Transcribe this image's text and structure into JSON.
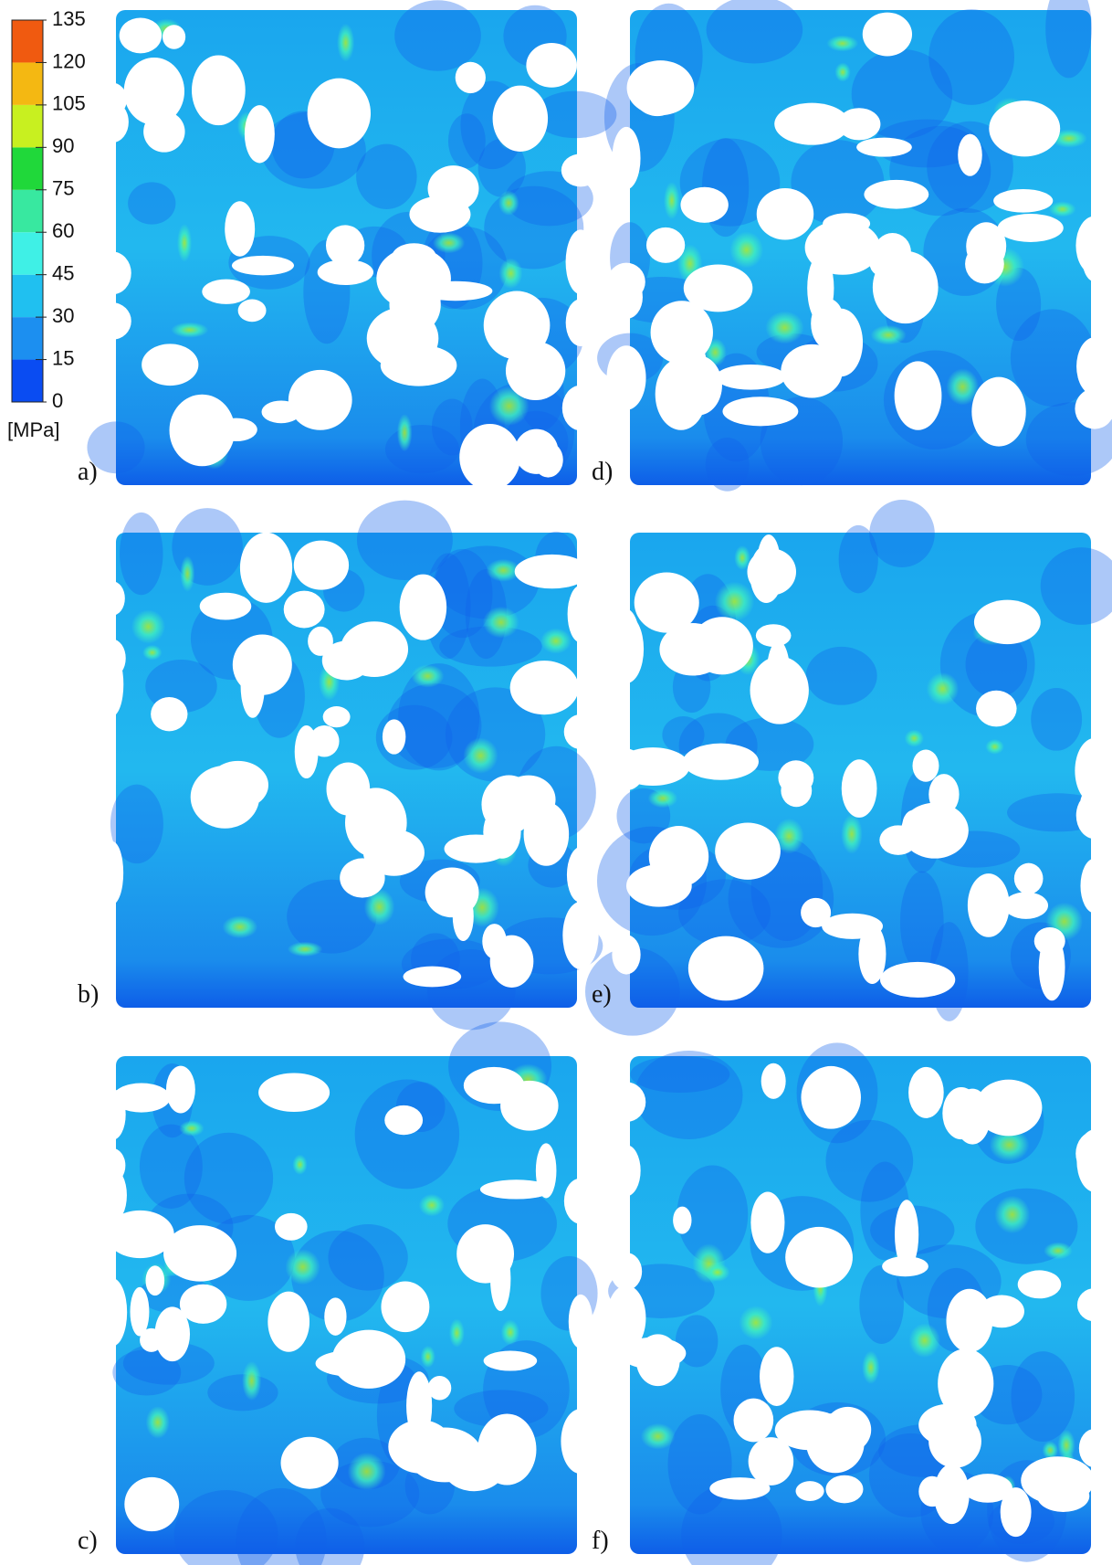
{
  "colorbar": {
    "ticks": [
      0,
      15,
      30,
      45,
      60,
      75,
      90,
      105,
      120,
      135
    ],
    "unit": "[MPa]",
    "colors": [
      "#0a4cf2",
      "#1c8ff0",
      "#20c0f0",
      "#3ff0e6",
      "#38e8a0",
      "#20d83a",
      "#c8f020",
      "#f4b812",
      "#f05a10"
    ]
  },
  "panels": [
    {
      "label": "a)"
    },
    {
      "label": "b)"
    },
    {
      "label": "c)"
    },
    {
      "label": "d)"
    },
    {
      "label": "e)"
    },
    {
      "label": "f)"
    }
  ]
}
